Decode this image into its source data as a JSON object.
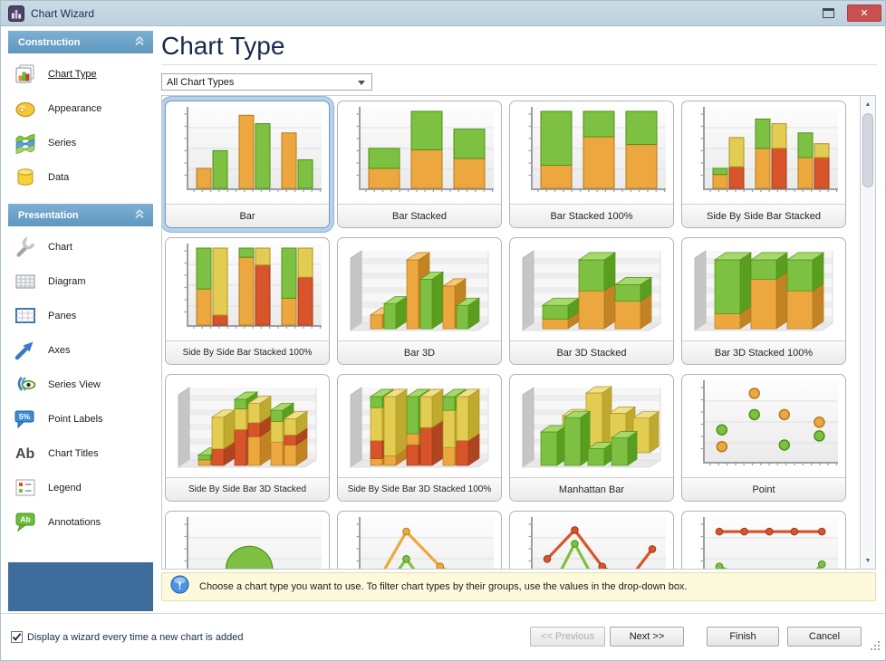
{
  "window": {
    "title": "Chart Wizard"
  },
  "titlebar": {
    "close_glyph": "✕"
  },
  "sidebar": {
    "groups": [
      {
        "label": "Construction",
        "items": [
          {
            "label": "Chart Type",
            "icon": "chart-type",
            "active": true
          },
          {
            "label": "Appearance",
            "icon": "appearance"
          },
          {
            "label": "Series",
            "icon": "series"
          },
          {
            "label": "Data",
            "icon": "data"
          }
        ]
      },
      {
        "label": "Presentation",
        "items": [
          {
            "label": "Chart",
            "icon": "chart"
          },
          {
            "label": "Diagram",
            "icon": "diagram"
          },
          {
            "label": "Panes",
            "icon": "panes"
          },
          {
            "label": "Axes",
            "icon": "axes"
          },
          {
            "label": "Series View",
            "icon": "series-view"
          },
          {
            "label": "Point Labels",
            "icon": "point-labels"
          },
          {
            "label": "Chart Titles",
            "icon": "chart-titles"
          },
          {
            "label": "Legend",
            "icon": "legend"
          },
          {
            "label": "Annotations",
            "icon": "annotations"
          }
        ]
      }
    ]
  },
  "main": {
    "heading": "Chart Type",
    "filter_value": "All Chart Types",
    "tiles": [
      {
        "label": "Bar",
        "selected": true,
        "thumb": {
          "kind": "bars",
          "groups": [
            [
              [
                [
                  "o",
                  0.26
                ]
              ],
              [
                [
                  "g",
                  0.49
                ]
              ]
            ],
            [
              [
                [
                  "o",
                  0.95
                ]
              ],
              [
                [
                  "g",
                  0.84
                ]
              ]
            ],
            [
              [
                [
                  "o",
                  0.72
                ]
              ],
              [
                [
                  "g",
                  0.37
                ]
              ]
            ]
          ]
        }
      },
      {
        "label": "Bar Stacked",
        "thumb": {
          "kind": "bars",
          "groups": [
            [
              [
                [
                  "o",
                  0.26
                ],
                [
                  "g",
                  0.26
                ]
              ]
            ],
            [
              [
                [
                  "o",
                  0.5
                ],
                [
                  "g",
                  0.5
                ]
              ]
            ],
            [
              [
                [
                  "o",
                  0.39
                ],
                [
                  "g",
                  0.38
                ]
              ]
            ]
          ]
        }
      },
      {
        "label": "Bar Stacked 100%",
        "thumb": {
          "kind": "bars",
          "groups": [
            [
              [
                [
                  "o",
                  0.3
                ],
                [
                  "g",
                  0.7
                ]
              ]
            ],
            [
              [
                [
                  "o",
                  0.67
                ],
                [
                  "g",
                  0.33
                ]
              ]
            ],
            [
              [
                [
                  "o",
                  0.57
                ],
                [
                  "g",
                  0.43
                ]
              ]
            ]
          ]
        }
      },
      {
        "label": "Side By Side Bar Stacked",
        "thumb": {
          "kind": "bars",
          "groups": [
            [
              [
                [
                  "o",
                  0.18
                ],
                [
                  "g",
                  0.08
                ]
              ],
              [
                [
                  "r",
                  0.28
                ],
                [
                  "y",
                  0.38
                ]
              ]
            ],
            [
              [
                [
                  "o",
                  0.52
                ],
                [
                  "g",
                  0.38
                ]
              ],
              [
                [
                  "r",
                  0.52
                ],
                [
                  "y",
                  0.32
                ]
              ]
            ],
            [
              [
                [
                  "o",
                  0.4
                ],
                [
                  "g",
                  0.32
                ]
              ],
              [
                [
                  "r",
                  0.4
                ],
                [
                  "y",
                  0.18
                ]
              ]
            ]
          ]
        }
      },
      {
        "label": "Side By Side Bar Stacked 100%",
        "thumb": {
          "kind": "bars",
          "groups": [
            [
              [
                [
                  "o",
                  0.47
                ],
                [
                  "g",
                  0.53
                ]
              ],
              [
                [
                  "r",
                  0.13
                ],
                [
                  "y",
                  0.87
                ]
              ]
            ],
            [
              [
                [
                  "o",
                  0.88
                ],
                [
                  "g",
                  0.12
                ]
              ],
              [
                [
                  "r",
                  0.78
                ],
                [
                  "y",
                  0.22
                ]
              ]
            ],
            [
              [
                [
                  "o",
                  0.35
                ],
                [
                  "g",
                  0.65
                ]
              ],
              [
                [
                  "r",
                  0.62
                ],
                [
                  "y",
                  0.38
                ]
              ]
            ]
          ]
        }
      },
      {
        "label": "Bar 3D",
        "thumb": {
          "kind": "bars3d",
          "groups": [
            [
              [
                [
                  "o",
                  0.2
                ]
              ],
              [
                [
                  "g",
                  0.36
                ]
              ]
            ],
            [
              [
                [
                  "o",
                  1.0
                ]
              ],
              [
                [
                  "g",
                  0.72
                ]
              ]
            ],
            [
              [
                [
                  "o",
                  0.62
                ]
              ],
              [
                [
                  "g",
                  0.34
                ]
              ]
            ]
          ]
        }
      },
      {
        "label": "Bar 3D Stacked",
        "thumb": {
          "kind": "bars3d",
          "groups": [
            [
              [
                [
                  "o",
                  0.14
                ],
                [
                  "g",
                  0.2
                ]
              ]
            ],
            [
              [
                [
                  "o",
                  0.55
                ],
                [
                  "g",
                  0.45
                ]
              ]
            ],
            [
              [
                [
                  "o",
                  0.4
                ],
                [
                  "g",
                  0.24
                ]
              ]
            ]
          ]
        }
      },
      {
        "label": "Bar 3D Stacked 100%",
        "thumb": {
          "kind": "bars3d",
          "groups": [
            [
              [
                [
                  "o",
                  0.22
                ],
                [
                  "g",
                  0.78
                ]
              ]
            ],
            [
              [
                [
                  "o",
                  0.72
                ],
                [
                  "g",
                  0.28
                ]
              ]
            ],
            [
              [
                [
                  "o",
                  0.55
                ],
                [
                  "g",
                  0.45
                ]
              ]
            ]
          ]
        }
      },
      {
        "label": "Side By Side Bar 3D Stacked",
        "thumb": {
          "kind": "bars3d",
          "groups": [
            [
              [
                [
                  "o",
                  0.08
                ],
                [
                  "g",
                  0.07
                ]
              ],
              [
                [
                  "r",
                  0.24
                ],
                [
                  "y",
                  0.46
                ]
              ]
            ],
            [
              [
                [
                  "r",
                  0.52
                ],
                [
                  "y",
                  0.3
                ],
                [
                  "g",
                  0.14
                ]
              ],
              [
                [
                  "o",
                  0.42
                ],
                [
                  "r",
                  0.2
                ],
                [
                  "y",
                  0.28
                ]
              ]
            ],
            [
              [
                [
                  "o",
                  0.34
                ],
                [
                  "y",
                  0.3
                ],
                [
                  "g",
                  0.16
                ]
              ],
              [
                [
                  "o",
                  0.3
                ],
                [
                  "r",
                  0.14
                ],
                [
                  "y",
                  0.24
                ]
              ]
            ]
          ]
        }
      },
      {
        "label": "Side By Side Bar 3D Stacked 100%",
        "thumb": {
          "kind": "bars3d",
          "groups": [
            [
              [
                [
                  "o",
                  0.1
                ],
                [
                  "r",
                  0.26
                ],
                [
                  "y",
                  0.48
                ],
                [
                  "g",
                  0.16
                ]
              ],
              [
                [
                  "o",
                  0.14
                ],
                [
                  "y",
                  0.86
                ]
              ]
            ],
            [
              [
                [
                  "r",
                  0.3
                ],
                [
                  "o",
                  0.16
                ],
                [
                  "g",
                  0.54
                ]
              ],
              [
                [
                  "r",
                  0.55
                ],
                [
                  "y",
                  0.45
                ]
              ]
            ],
            [
              [
                [
                  "o",
                  0.26
                ],
                [
                  "y",
                  0.54
                ],
                [
                  "g",
                  0.2
                ]
              ],
              [
                [
                  "r",
                  0.36
                ],
                [
                  "y",
                  0.64
                ]
              ]
            ]
          ]
        }
      },
      {
        "label": "Manhattan Bar",
        "thumb": {
          "kind": "manhattan",
          "rows": [
            {
              "c": "y",
              "vals": [
                0.62,
                1.0,
                0.66,
                0.58
              ]
            },
            {
              "c": "g",
              "vals": [
                0.56,
                0.8,
                0.28,
                0.46
              ]
            }
          ]
        }
      },
      {
        "label": "Point",
        "thumb": {
          "kind": "scatter",
          "points": [
            [
              "g",
              0.1,
              0.42
            ],
            [
              "o",
              0.1,
              0.2
            ],
            [
              "o",
              0.36,
              0.9
            ],
            [
              "g",
              0.36,
              0.62
            ],
            [
              "o",
              0.6,
              0.62
            ],
            [
              "g",
              0.6,
              0.22
            ],
            [
              "o",
              0.88,
              0.52
            ],
            [
              "g",
              0.88,
              0.34
            ]
          ]
        }
      },
      {
        "label": "",
        "partial": true,
        "thumb": {
          "kind": "bubble",
          "bubbles": [
            [
              "o",
              0.06,
              0.02,
              0.1
            ],
            [
              "g",
              0.45,
              0.4,
              0.27
            ],
            [
              "o",
              0.45,
              0.08,
              0.2
            ],
            [
              "o",
              0.85,
              0.1,
              0.15
            ]
          ]
        }
      },
      {
        "label": "",
        "partial": true,
        "thumb": {
          "kind": "lines",
          "series": [
            {
              "c": "g",
              "pts": [
                [
                  0.04,
                  -0.15
                ],
                [
                  0.33,
                  0.52
                ],
                [
                  0.6,
                  -0.08
                ],
                [
                  0.9,
                  -0.15
                ]
              ]
            },
            {
              "c": "o",
              "pts": [
                [
                  0.04,
                  0.05
                ],
                [
                  0.33,
                  0.88
                ],
                [
                  0.6,
                  0.42
                ],
                [
                  0.9,
                  0.16
                ]
              ]
            }
          ]
        }
      },
      {
        "label": "",
        "partial": true,
        "thumb": {
          "kind": "lines",
          "series": [
            {
              "c": "g",
              "pts": [
                [
                  0.08,
                  0.02
                ],
                [
                  0.3,
                  0.72
                ],
                [
                  0.52,
                  0.05
                ],
                [
                  0.72,
                  -0.25
                ],
                [
                  0.92,
                  0.28
                ]
              ]
            },
            {
              "c": "r",
              "pts": [
                [
                  0.08,
                  0.52
                ],
                [
                  0.3,
                  0.9
                ],
                [
                  0.52,
                  0.42
                ],
                [
                  0.72,
                  0.22
                ],
                [
                  0.92,
                  0.65
                ]
              ]
            }
          ]
        }
      },
      {
        "label": "",
        "partial": true,
        "thumb": {
          "kind": "lines",
          "series": [
            {
              "c": "g",
              "pts": [
                [
                  0.08,
                  0.42
                ],
                [
                  0.28,
                  0.28
                ],
                [
                  0.48,
                  0.02
                ],
                [
                  0.68,
                  0.06
                ],
                [
                  0.9,
                  0.45
                ]
              ]
            },
            {
              "c": "r",
              "pts": [
                [
                  0.08,
                  0.88
                ],
                [
                  0.28,
                  0.88
                ],
                [
                  0.48,
                  0.88
                ],
                [
                  0.68,
                  0.88
                ],
                [
                  0.9,
                  0.88
                ]
              ]
            }
          ]
        }
      }
    ]
  },
  "info_bar": {
    "text": "Choose a chart type you want to use. To filter chart types by their groups, use the values in the drop-down box."
  },
  "footer": {
    "checkbox_label": "Display a wizard every time a new chart is added",
    "checkbox_checked": true,
    "buttons": [
      {
        "label": "<< Previous",
        "disabled": true
      },
      {
        "label": "Next >>",
        "disabled": false
      },
      {
        "label": "Finish",
        "disabled": false
      },
      {
        "label": "Cancel",
        "disabled": false
      }
    ]
  },
  "palette": {
    "o": "#ECA83F",
    "g": "#7EC142",
    "r": "#D8552B",
    "y": "#E2CC52"
  },
  "strokes": {
    "o": "#B5791B",
    "g": "#4E9114",
    "r": "#A03A17",
    "y": "#AD9422"
  },
  "accents": {
    "selection": "#B7D0E7",
    "header_blue": "#679FC5",
    "panel_blue": "#3E6D9D",
    "info_bg": "#FCFADB",
    "titlebar": "#C2D4E0",
    "close_red": "#C9504E"
  }
}
